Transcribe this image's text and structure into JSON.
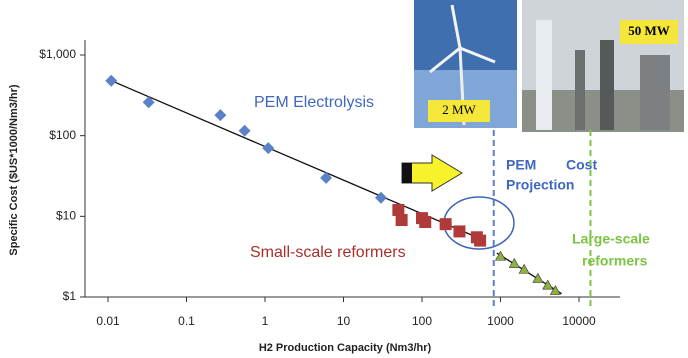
{
  "chart_data": {
    "type": "scatter",
    "xlabel": "H2 Production Capacity (Nm3/hr)",
    "ylabel": "Specific Cost ($US*1000/Nm3/hr)",
    "log_x": true,
    "log_y": true,
    "xlim": [
      0.01,
      10000
    ],
    "ylim": [
      1,
      1000
    ],
    "xticks": [
      0.01,
      0.1,
      1,
      10,
      100,
      1000,
      10000
    ],
    "yticks": [
      {
        "value": 1,
        "label": "$1"
      },
      {
        "value": 10,
        "label": "$10"
      },
      {
        "value": 100,
        "label": "$100"
      },
      {
        "value": 1000,
        "label": "$1,000"
      }
    ],
    "series": [
      {
        "marker": "diamond",
        "color": "#5b82c8",
        "x": [
          0.011,
          0.033,
          0.27,
          0.55,
          1.1,
          6,
          30
        ],
        "values": [
          480,
          260,
          180,
          115,
          70,
          30,
          17
        ]
      },
      {
        "marker": "square",
        "color": "#b03a3a",
        "x": [
          50,
          55,
          100,
          110,
          200,
          300,
          500,
          550
        ],
        "values": [
          12,
          9,
          9.5,
          8.5,
          8,
          6.5,
          5.5,
          5
        ]
      },
      {
        "marker": "triangle",
        "color": "#8db040",
        "x": [
          1000,
          1500,
          2000,
          3000,
          4000,
          5000
        ],
        "values": [
          3.2,
          2.6,
          2.2,
          1.7,
          1.4,
          1.2
        ]
      }
    ],
    "trendlines": [
      {
        "color": "#111",
        "x": [
          0.01,
          500
        ],
        "values": [
          500,
          5.5
        ]
      },
      {
        "color": "#111",
        "x": [
          900,
          6000
        ],
        "values": [
          3.5,
          1.1
        ]
      }
    ],
    "reference_lines": [
      {
        "x": 820,
        "color": "#5b7fd0"
      },
      {
        "x": 14000,
        "color": "#7cc444"
      }
    ],
    "annotations": {
      "pem_electrolysis": "PEM Electrolysis",
      "small_scale": "Small-scale reformers",
      "pem": "PEM",
      "projection": "Projection",
      "cost": "Cost",
      "large_scale_1": "Large-scale",
      "large_scale_2": "reformers",
      "photo_1": "2 MW",
      "photo_2": "50 MW"
    }
  }
}
